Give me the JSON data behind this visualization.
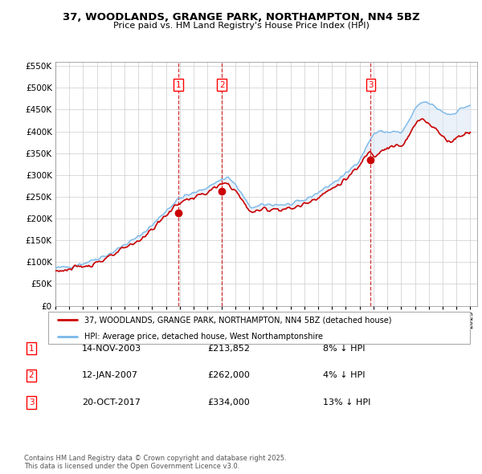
{
  "title": "37, WOODLANDS, GRANGE PARK, NORTHAMPTON, NN4 5BZ",
  "subtitle": "Price paid vs. HM Land Registry's House Price Index (HPI)",
  "background_color": "#ffffff",
  "plot_background": "#ffffff",
  "grid_color": "#cccccc",
  "hpi_color": "#7ab8e8",
  "price_color": "#cc0000",
  "dashed_line_color": "#cc0000",
  "shade_color": "#dce9f5",
  "legend_box_label": "37, WOODLANDS, GRANGE PARK, NORTHAMPTON, NN4 5BZ (detached house)",
  "hpi_label": "HPI: Average price, detached house, West Northamptonshire",
  "sales": [
    {
      "num": 1,
      "date_label": "14-NOV-2003",
      "price": 213852,
      "note": "8% ↓ HPI",
      "year": 2003.87
    },
    {
      "num": 2,
      "date_label": "12-JAN-2007",
      "price": 262000,
      "note": "4% ↓ HPI",
      "year": 2007.04
    },
    {
      "num": 3,
      "date_label": "20-OCT-2017",
      "price": 334000,
      "note": "13% ↓ HPI",
      "year": 2017.8
    }
  ],
  "copyright_text": "Contains HM Land Registry data © Crown copyright and database right 2025.\nThis data is licensed under the Open Government Licence v3.0.",
  "ylim": [
    0,
    560000
  ],
  "yticks": [
    0,
    50000,
    100000,
    150000,
    200000,
    250000,
    300000,
    350000,
    400000,
    450000,
    500000,
    550000
  ],
  "xlim_start": 1995.0,
  "xlim_end": 2025.5
}
